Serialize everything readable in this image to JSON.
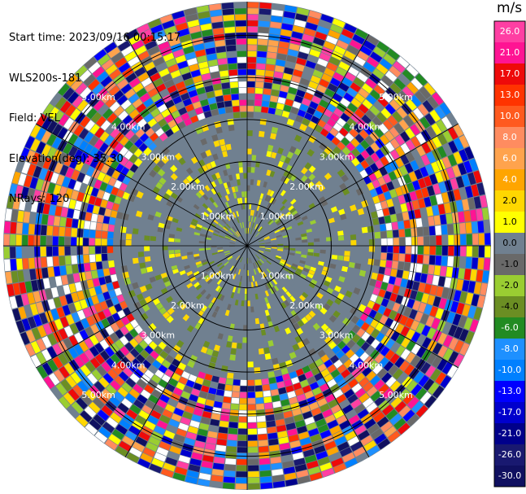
{
  "metadata": {
    "start_time": "Start time: 2023/09/16 00:15:17",
    "instrument": "WLS200s-181",
    "field": "Field: VEL",
    "elevation": "Elevation(deg): 35.30",
    "nrays": "NRays: 120"
  },
  "colorbar": {
    "unit": "m/s",
    "ticks": [
      "26.0",
      "21.0",
      "17.0",
      "13.0",
      "10.0",
      "8.0",
      "6.0",
      "4.0",
      "2.0",
      "1.0",
      "0.0",
      "-1.0",
      "-2.0",
      "-4.0",
      "-6.0",
      "-8.0",
      "-10.0",
      "-13.0",
      "-17.0",
      "-21.0",
      "-26.0",
      "-30.0"
    ],
    "colors": [
      "#ff3fa3",
      "#ff1493",
      "#ee0a0a",
      "#ff3300",
      "#ff5a1f",
      "#ff8c60",
      "#ffa34d",
      "#ffa500",
      "#ffd700",
      "#ffff00",
      "#708090",
      "#696969",
      "#9acd32",
      "#6b8e23",
      "#228b22",
      "#1e90ff",
      "#0080ff",
      "#0000ff",
      "#0000cd",
      "#00008b",
      "#191970",
      "#101060"
    ]
  },
  "chart_data": {
    "type": "ppi",
    "field": "VEL",
    "units": "m/s",
    "nrays": 120,
    "range_rings_km": [
      1,
      2,
      3,
      4,
      5
    ],
    "ring_labels": [
      "1.00km",
      "2.00km",
      "3.00km",
      "4.00km",
      "5.00km"
    ],
    "max_range_km": 5.8,
    "spokes_deg": [
      0,
      30,
      60,
      90,
      120,
      150,
      180,
      210,
      240,
      270,
      300,
      330
    ],
    "description_of_fields": "inner region mostly low velocities (gray/yellow/green), outer region noisy full-range colors"
  }
}
